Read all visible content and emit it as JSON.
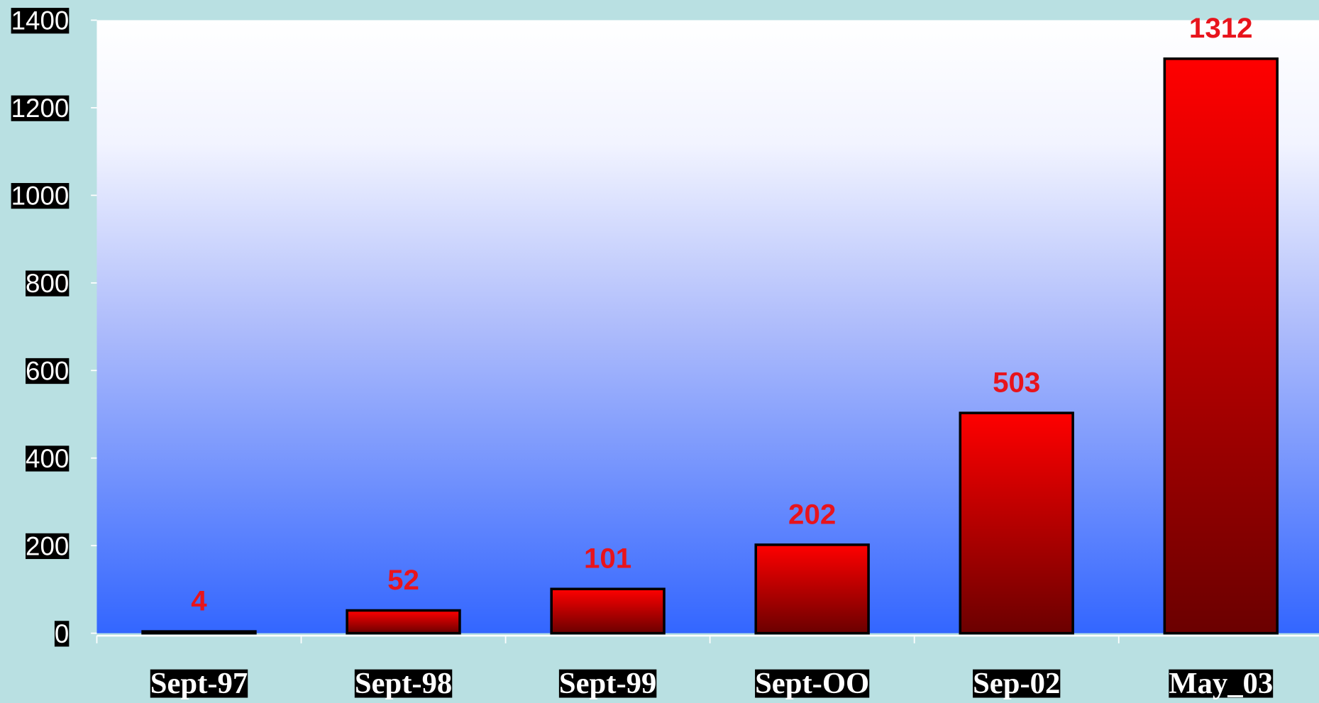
{
  "chart_data": {
    "type": "bar",
    "categories": [
      "Sept-97",
      "Sept-98",
      "Sept-99",
      "Sept-OO",
      "Sep-02",
      "May_03"
    ],
    "values": [
      4,
      52,
      101,
      202,
      503,
      1312
    ],
    "color": "#ff0000",
    "value_label_color": "#e8141c",
    "ylim": [
      0,
      1400
    ],
    "yticks": [
      0,
      200,
      400,
      600,
      800,
      1000,
      1200,
      1400
    ]
  }
}
